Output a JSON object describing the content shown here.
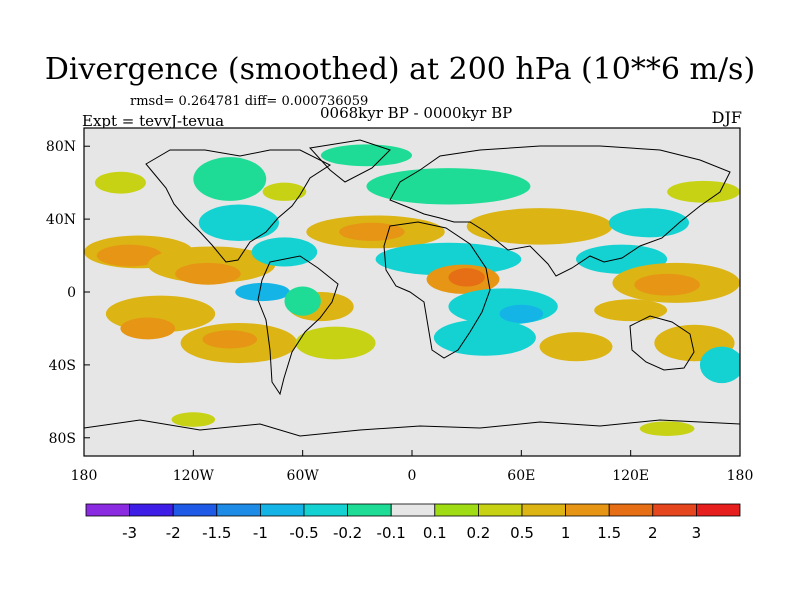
{
  "title": "Divergence (smoothed) at 200 hPa (10**6 m/s)",
  "stats": "rmsd= 0.264781 diff= 0.000736059",
  "experiment": "Expt = tevvJ-tevua",
  "period": "0068kyr BP - 0000kyr BP",
  "season": "DJF",
  "map": {
    "lon_range": [
      -180,
      180
    ],
    "lat_range": [
      -90,
      90
    ],
    "x_ticks": [
      {
        "lon": -180,
        "label": "180"
      },
      {
        "lon": -120,
        "label": "120W"
      },
      {
        "lon": -60,
        "label": "60W"
      },
      {
        "lon": 0,
        "label": "0"
      },
      {
        "lon": 60,
        "label": "60E"
      },
      {
        "lon": 120,
        "label": "120E"
      },
      {
        "lon": 180,
        "label": "180"
      }
    ],
    "y_ticks": [
      {
        "lat": 80,
        "label": "80N"
      },
      {
        "lat": 40,
        "label": "40N"
      },
      {
        "lat": 0,
        "label": "0"
      },
      {
        "lat": -40,
        "label": "40S"
      },
      {
        "lat": -80,
        "label": "80S"
      }
    ],
    "background_color": "#e6e6e6",
    "anomaly_regions": [
      {
        "lon": -150,
        "lat": 22,
        "rlon": 30,
        "rlat": 9,
        "level": 0.5
      },
      {
        "lon": -155,
        "lat": 20,
        "rlon": 18,
        "rlat": 6,
        "level": 1
      },
      {
        "lon": -110,
        "lat": 15,
        "rlon": 35,
        "rlat": 10,
        "level": 0.5
      },
      {
        "lon": -112,
        "lat": 10,
        "rlon": 18,
        "rlat": 6,
        "level": 1
      },
      {
        "lon": -95,
        "lat": 38,
        "rlon": 22,
        "rlat": 10,
        "level": -0.5
      },
      {
        "lon": -100,
        "lat": 62,
        "rlon": 20,
        "rlat": 12,
        "level": -0.2
      },
      {
        "lon": -70,
        "lat": 22,
        "rlon": 18,
        "rlat": 8,
        "level": -0.5
      },
      {
        "lon": -82,
        "lat": 0,
        "rlon": 15,
        "rlat": 5,
        "level": -1
      },
      {
        "lon": -138,
        "lat": -12,
        "rlon": 30,
        "rlat": 10,
        "level": 0.5
      },
      {
        "lon": -145,
        "lat": -20,
        "rlon": 15,
        "rlat": 6,
        "level": 1
      },
      {
        "lon": -95,
        "lat": -28,
        "rlon": 32,
        "rlat": 11,
        "level": 0.5
      },
      {
        "lon": -100,
        "lat": -26,
        "rlon": 15,
        "rlat": 5,
        "level": 1
      },
      {
        "lon": -50,
        "lat": -8,
        "rlon": 18,
        "rlat": 8,
        "level": 0.5
      },
      {
        "lon": -42,
        "lat": -28,
        "rlon": 22,
        "rlat": 9,
        "level": 0.2
      },
      {
        "lon": -60,
        "lat": -5,
        "rlon": 10,
        "rlat": 8,
        "level": -0.2
      },
      {
        "lon": -20,
        "lat": 33,
        "rlon": 38,
        "rlat": 9,
        "level": 0.5
      },
      {
        "lon": -22,
        "lat": 33,
        "rlon": 18,
        "rlat": 5,
        "level": 1
      },
      {
        "lon": -25,
        "lat": 75,
        "rlon": 25,
        "rlat": 6,
        "level": -0.2
      },
      {
        "lon": 20,
        "lat": 58,
        "rlon": 45,
        "rlat": 10,
        "level": -0.2
      },
      {
        "lon": 20,
        "lat": 18,
        "rlon": 40,
        "rlat": 9,
        "level": -0.5
      },
      {
        "lon": 28,
        "lat": 7,
        "rlon": 20,
        "rlat": 8,
        "level": 1
      },
      {
        "lon": 30,
        "lat": 8,
        "rlon": 10,
        "rlat": 5,
        "level": 1.5
      },
      {
        "lon": 70,
        "lat": 36,
        "rlon": 40,
        "rlat": 10,
        "level": 0.5
      },
      {
        "lon": 50,
        "lat": -8,
        "rlon": 30,
        "rlat": 10,
        "level": -0.5
      },
      {
        "lon": 60,
        "lat": -12,
        "rlon": 12,
        "rlat": 5,
        "level": -1
      },
      {
        "lon": 40,
        "lat": -25,
        "rlon": 28,
        "rlat": 10,
        "level": -0.5
      },
      {
        "lon": 90,
        "lat": -30,
        "rlon": 20,
        "rlat": 8,
        "level": 0.5
      },
      {
        "lon": 115,
        "lat": 18,
        "rlon": 25,
        "rlat": 8,
        "level": -0.5
      },
      {
        "lon": 145,
        "lat": 5,
        "rlon": 35,
        "rlat": 11,
        "level": 0.5
      },
      {
        "lon": 140,
        "lat": 4,
        "rlon": 18,
        "rlat": 6,
        "level": 1
      },
      {
        "lon": 130,
        "lat": 38,
        "rlon": 22,
        "rlat": 8,
        "level": -0.5
      },
      {
        "lon": 120,
        "lat": -10,
        "rlon": 20,
        "rlat": 6,
        "level": 0.5
      },
      {
        "lon": 155,
        "lat": -28,
        "rlon": 22,
        "rlat": 10,
        "level": 0.5
      },
      {
        "lon": 170,
        "lat": -40,
        "rlon": 12,
        "rlat": 10,
        "level": -0.5
      },
      {
        "lon": -160,
        "lat": 60,
        "rlon": 14,
        "rlat": 6,
        "level": 0.2
      },
      {
        "lon": 160,
        "lat": 55,
        "rlon": 20,
        "rlat": 6,
        "level": 0.2
      },
      {
        "lon": -70,
        "lat": 55,
        "rlon": 12,
        "rlat": 5,
        "level": 0.2
      },
      {
        "lon": -120,
        "lat": -70,
        "rlon": 12,
        "rlat": 4,
        "level": 0.2
      },
      {
        "lon": 140,
        "lat": -75,
        "rlon": 15,
        "rlat": 4,
        "level": 0.2
      }
    ]
  },
  "colorbar": {
    "colors": [
      "#8a2be2",
      "#3e1ee6",
      "#1e5ae6",
      "#1e8ce6",
      "#14b4e6",
      "#14d2d2",
      "#1edc96",
      "#e6e6e6",
      "#a0dc14",
      "#c8d214",
      "#dcb414",
      "#e69614",
      "#e66e14",
      "#e6461e",
      "#e61e1e"
    ],
    "labels": [
      "-3",
      "-2",
      "-1.5",
      "-1",
      "-0.5",
      "-0.2",
      "-0.1",
      "0.1",
      "0.2",
      "0.5",
      "1",
      "1.5",
      "2",
      "3"
    ]
  }
}
